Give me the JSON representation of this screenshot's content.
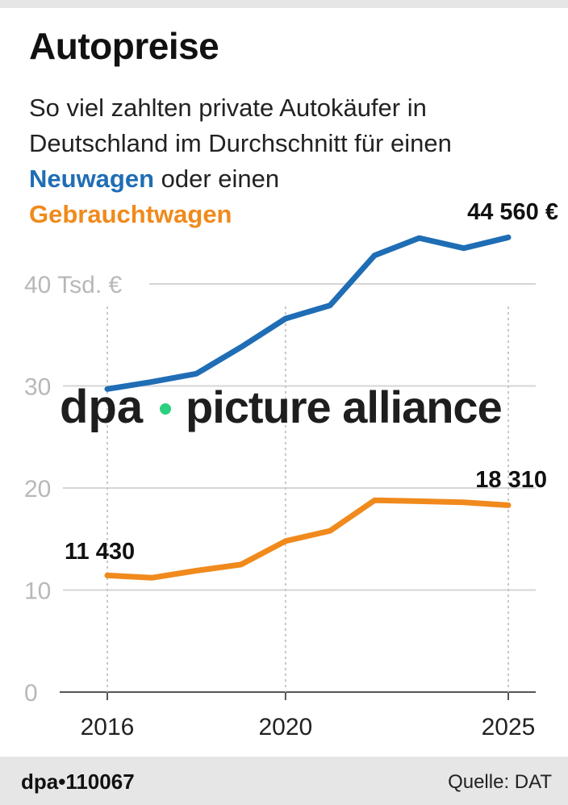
{
  "title": "Autopreise",
  "subtitle": {
    "line1": "So viel zahlten private Autokäufer in",
    "line2": "Deutschland im Durchschnitt für einen",
    "new_label": "Neuwagen",
    "connector": " oder einen",
    "used_label": "Gebrauchtwagen"
  },
  "colors": {
    "new": "#1f6db5",
    "used": "#f08a1c",
    "grid": "#d6d6d6",
    "tick": "#b8b8b8"
  },
  "watermark": {
    "brand": "dpa",
    "text": "picture alliance",
    "dot_color": "#2ad07f"
  },
  "footer": {
    "id": "dpa•110067",
    "source": "Quelle: DAT"
  },
  "chart_data": {
    "type": "line",
    "unit_label": "40 Tsd. €",
    "x": [
      2016,
      2017,
      2018,
      2019,
      2020,
      2021,
      2022,
      2023,
      2024,
      2025
    ],
    "xticks": [
      "2016",
      "2020",
      "2025"
    ],
    "yticks": [
      "0",
      "10",
      "20",
      "30",
      "40 Tsd. €"
    ],
    "ylim": [
      0,
      50
    ],
    "series": [
      {
        "name": "Neuwagen",
        "values": [
          29.7,
          30.4,
          31.2,
          33.8,
          36.6,
          37.9,
          42.8,
          44.5,
          43.5,
          44.56
        ]
      },
      {
        "name": "Gebrauchtwagen",
        "values": [
          11.43,
          11.2,
          11.9,
          12.5,
          14.8,
          15.8,
          18.8,
          18.7,
          18.6,
          18.31
        ]
      }
    ],
    "labels": {
      "new_end": "44 560 €",
      "used_start": "11 430",
      "used_end": "18 310"
    }
  }
}
